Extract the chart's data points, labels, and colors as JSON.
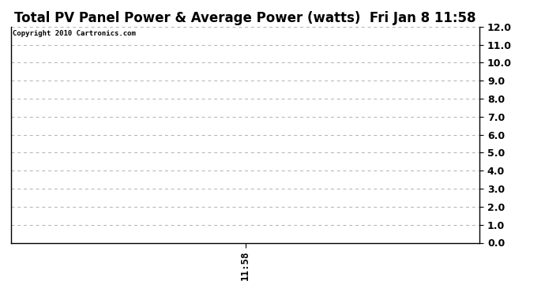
{
  "title": "Total PV Panel Power & Average Power (watts)  Fri Jan 8 11:58",
  "copyright_text": "Copyright 2010 Cartronics.com",
  "x_tick_labels": [
    "11:58"
  ],
  "x_tick_positions": [
    0
  ],
  "ylim": [
    0.0,
    12.0
  ],
  "yticks": [
    0.0,
    1.0,
    2.0,
    3.0,
    4.0,
    5.0,
    6.0,
    7.0,
    8.0,
    9.0,
    10.0,
    11.0,
    12.0
  ],
  "xlim": [
    -0.5,
    0.5
  ],
  "background_color": "#ffffff",
  "grid_color": "#b0b0b0",
  "title_fontsize": 12,
  "copyright_fontsize": 6.5,
  "tick_fontsize": 9
}
